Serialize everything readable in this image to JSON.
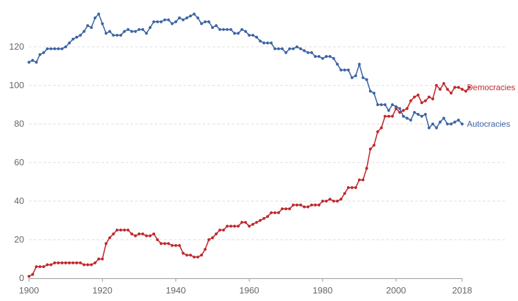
{
  "chart_data": {
    "type": "line",
    "xlim": [
      1900,
      2018
    ],
    "ylim": [
      0,
      140
    ],
    "x_ticks": [
      1900,
      1920,
      1940,
      1960,
      1980,
      2000,
      2018
    ],
    "y_ticks": [
      0,
      20,
      40,
      60,
      80,
      100,
      120
    ],
    "grid": true,
    "legend": "inline labels at line ends (right)",
    "series": [
      {
        "name": "Democracies",
        "color": "#c0282d",
        "points": [
          [
            1900,
            1
          ],
          [
            1901,
            2
          ],
          [
            1902,
            6
          ],
          [
            1903,
            6
          ],
          [
            1904,
            6
          ],
          [
            1905,
            7
          ],
          [
            1906,
            7
          ],
          [
            1907,
            8
          ],
          [
            1908,
            8
          ],
          [
            1909,
            8
          ],
          [
            1910,
            8
          ],
          [
            1911,
            8
          ],
          [
            1912,
            8
          ],
          [
            1913,
            8
          ],
          [
            1914,
            8
          ],
          [
            1915,
            7
          ],
          [
            1916,
            7
          ],
          [
            1917,
            7
          ],
          [
            1918,
            8
          ],
          [
            1919,
            10
          ],
          [
            1920,
            10
          ],
          [
            1921,
            18
          ],
          [
            1922,
            21
          ],
          [
            1923,
            23
          ],
          [
            1924,
            25
          ],
          [
            1925,
            25
          ],
          [
            1926,
            25
          ],
          [
            1927,
            25
          ],
          [
            1928,
            23
          ],
          [
            1929,
            22
          ],
          [
            1930,
            23
          ],
          [
            1931,
            23
          ],
          [
            1932,
            22
          ],
          [
            1933,
            22
          ],
          [
            1934,
            23
          ],
          [
            1935,
            20
          ],
          [
            1936,
            18
          ],
          [
            1937,
            18
          ],
          [
            1938,
            18
          ],
          [
            1939,
            17
          ],
          [
            1940,
            17
          ],
          [
            1941,
            17
          ],
          [
            1942,
            13
          ],
          [
            1943,
            12
          ],
          [
            1944,
            12
          ],
          [
            1945,
            11
          ],
          [
            1946,
            11
          ],
          [
            1947,
            12
          ],
          [
            1948,
            15
          ],
          [
            1949,
            20
          ],
          [
            1950,
            21
          ],
          [
            1951,
            23
          ],
          [
            1952,
            25
          ],
          [
            1953,
            25
          ],
          [
            1954,
            27
          ],
          [
            1955,
            27
          ],
          [
            1956,
            27
          ],
          [
            1957,
            27
          ],
          [
            1958,
            29
          ],
          [
            1959,
            29
          ],
          [
            1960,
            27
          ],
          [
            1961,
            28
          ],
          [
            1962,
            29
          ],
          [
            1963,
            30
          ],
          [
            1964,
            31
          ],
          [
            1965,
            32
          ],
          [
            1966,
            34
          ],
          [
            1967,
            34
          ],
          [
            1968,
            34
          ],
          [
            1969,
            36
          ],
          [
            1970,
            36
          ],
          [
            1971,
            36
          ],
          [
            1972,
            38
          ],
          [
            1973,
            38
          ],
          [
            1974,
            38
          ],
          [
            1975,
            37
          ],
          [
            1976,
            37
          ],
          [
            1977,
            38
          ],
          [
            1978,
            38
          ],
          [
            1979,
            38
          ],
          [
            1980,
            40
          ],
          [
            1981,
            40
          ],
          [
            1982,
            41
          ],
          [
            1983,
            40
          ],
          [
            1984,
            40
          ],
          [
            1985,
            41
          ],
          [
            1986,
            44
          ],
          [
            1987,
            47
          ],
          [
            1988,
            47
          ],
          [
            1989,
            47
          ],
          [
            1990,
            51
          ],
          [
            1991,
            51
          ],
          [
            1992,
            57
          ],
          [
            1993,
            67
          ],
          [
            1994,
            69
          ],
          [
            1995,
            76
          ],
          [
            1996,
            78
          ],
          [
            1997,
            84
          ],
          [
            1998,
            84
          ],
          [
            1999,
            84
          ],
          [
            2000,
            88
          ],
          [
            2001,
            86
          ],
          [
            2002,
            87
          ],
          [
            2003,
            88
          ],
          [
            2004,
            92
          ],
          [
            2005,
            94
          ],
          [
            2006,
            95
          ],
          [
            2007,
            91
          ],
          [
            2008,
            92
          ],
          [
            2009,
            94
          ],
          [
            2010,
            93
          ],
          [
            2011,
            100
          ],
          [
            2012,
            98
          ],
          [
            2013,
            101
          ],
          [
            2014,
            98
          ],
          [
            2015,
            96
          ],
          [
            2016,
            99
          ],
          [
            2017,
            99
          ],
          [
            2018,
            98
          ],
          [
            2019,
            97
          ],
          [
            2020,
            99
          ]
        ]
      },
      {
        "name": "Autocracies",
        "color": "#3c64a4",
        "points": [
          [
            1900,
            112
          ],
          [
            1901,
            113
          ],
          [
            1902,
            112
          ],
          [
            1903,
            116
          ],
          [
            1904,
            117
          ],
          [
            1905,
            119
          ],
          [
            1906,
            119
          ],
          [
            1907,
            119
          ],
          [
            1908,
            119
          ],
          [
            1909,
            119
          ],
          [
            1910,
            120
          ],
          [
            1911,
            122
          ],
          [
            1912,
            124
          ],
          [
            1913,
            125
          ],
          [
            1914,
            126
          ],
          [
            1915,
            128
          ],
          [
            1916,
            131
          ],
          [
            1917,
            130
          ],
          [
            1918,
            135
          ],
          [
            1919,
            137
          ],
          [
            1920,
            132
          ],
          [
            1921,
            127
          ],
          [
            1922,
            128
          ],
          [
            1923,
            126
          ],
          [
            1924,
            126
          ],
          [
            1925,
            126
          ],
          [
            1926,
            128
          ],
          [
            1927,
            129
          ],
          [
            1928,
            128
          ],
          [
            1929,
            128
          ],
          [
            1930,
            129
          ],
          [
            1931,
            129
          ],
          [
            1932,
            127
          ],
          [
            1933,
            130
          ],
          [
            1934,
            133
          ],
          [
            1935,
            133
          ],
          [
            1936,
            133
          ],
          [
            1937,
            134
          ],
          [
            1938,
            134
          ],
          [
            1939,
            132
          ],
          [
            1940,
            133
          ],
          [
            1941,
            135
          ],
          [
            1942,
            134
          ],
          [
            1943,
            135
          ],
          [
            1944,
            136
          ],
          [
            1945,
            137
          ],
          [
            1946,
            135
          ],
          [
            1947,
            132
          ],
          [
            1948,
            133
          ],
          [
            1949,
            133
          ],
          [
            1950,
            130
          ],
          [
            1951,
            131
          ],
          [
            1952,
            129
          ],
          [
            1953,
            129
          ],
          [
            1954,
            129
          ],
          [
            1955,
            129
          ],
          [
            1956,
            127
          ],
          [
            1957,
            127
          ],
          [
            1958,
            129
          ],
          [
            1959,
            128
          ],
          [
            1960,
            126
          ],
          [
            1961,
            126
          ],
          [
            1962,
            125
          ],
          [
            1963,
            123
          ],
          [
            1964,
            122
          ],
          [
            1965,
            122
          ],
          [
            1966,
            122
          ],
          [
            1967,
            119
          ],
          [
            1968,
            119
          ],
          [
            1969,
            119
          ],
          [
            1970,
            117
          ],
          [
            1971,
            119
          ],
          [
            1972,
            119
          ],
          [
            1973,
            120
          ],
          [
            1974,
            119
          ],
          [
            1975,
            118
          ],
          [
            1976,
            117
          ],
          [
            1977,
            117
          ],
          [
            1978,
            115
          ],
          [
            1979,
            115
          ],
          [
            1980,
            114
          ],
          [
            1981,
            115
          ],
          [
            1982,
            115
          ],
          [
            1983,
            114
          ],
          [
            1984,
            111
          ],
          [
            1985,
            108
          ],
          [
            1986,
            108
          ],
          [
            1987,
            108
          ],
          [
            1988,
            104
          ],
          [
            1989,
            105
          ],
          [
            1990,
            111
          ],
          [
            1991,
            104
          ],
          [
            1992,
            103
          ],
          [
            1993,
            97
          ],
          [
            1994,
            96
          ],
          [
            1995,
            90
          ],
          [
            1996,
            90
          ],
          [
            1997,
            90
          ],
          [
            1998,
            87
          ],
          [
            1999,
            90
          ],
          [
            2000,
            89
          ],
          [
            2001,
            88
          ],
          [
            2002,
            84
          ],
          [
            2003,
            83
          ],
          [
            2004,
            82
          ],
          [
            2005,
            86
          ],
          [
            2006,
            85
          ],
          [
            2007,
            84
          ],
          [
            2008,
            85
          ],
          [
            2009,
            78
          ],
          [
            2010,
            80
          ],
          [
            2011,
            78
          ],
          [
            2012,
            81
          ],
          [
            2013,
            83
          ],
          [
            2014,
            80
          ],
          [
            2015,
            80
          ],
          [
            2016,
            81
          ],
          [
            2017,
            82
          ],
          [
            2018,
            80
          ]
        ]
      }
    ]
  }
}
